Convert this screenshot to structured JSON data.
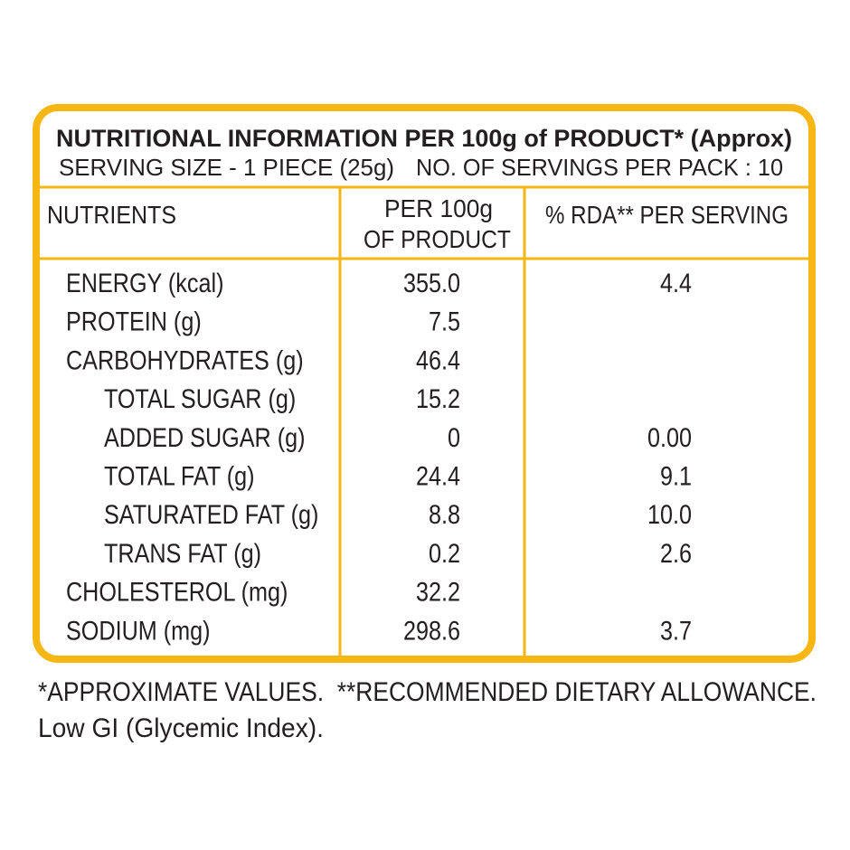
{
  "header": {
    "title": "NUTRITIONAL INFORMATION PER 100g of PRODUCT* (Approx)",
    "serving_size": "SERVING SIZE - 1 PIECE (25g)",
    "servings_per_pack": "NO. OF SERVINGS PER PACK : 10"
  },
  "table": {
    "columns": [
      "NUTRIENTS",
      [
        "PER 100g",
        "OF PRODUCT"
      ],
      "% RDA** PER SERVING"
    ],
    "rows": [
      [
        "ENERGY (kcal)",
        "355.0",
        "4.4"
      ],
      [
        "PROTEIN (g)",
        "7.5",
        null
      ],
      [
        "CARBOHYDRATES (g)",
        "46.4",
        null
      ],
      [
        "TOTAL SUGAR (g)",
        "15.2",
        null
      ],
      [
        "ADDED SUGAR (g)",
        "0",
        "0.00"
      ],
      [
        "TOTAL FAT (g)",
        "24.4",
        "9.1"
      ],
      [
        "SATURATED FAT (g)",
        "8.8",
        "10.0"
      ],
      [
        "TRANS FAT (g)",
        "0.2",
        "2.6"
      ],
      [
        "CHOLESTEROL (mg)",
        "32.2",
        null
      ],
      [
        "SODIUM (mg)",
        "298.6",
        "3.7"
      ]
    ]
  },
  "footer": {
    "lines": [
      "*APPROXIMATE VALUES.  **RECOMMENDED DIETARY ALLOWANCE.",
      "Low GI (Glycemic Index)."
    ]
  }
}
